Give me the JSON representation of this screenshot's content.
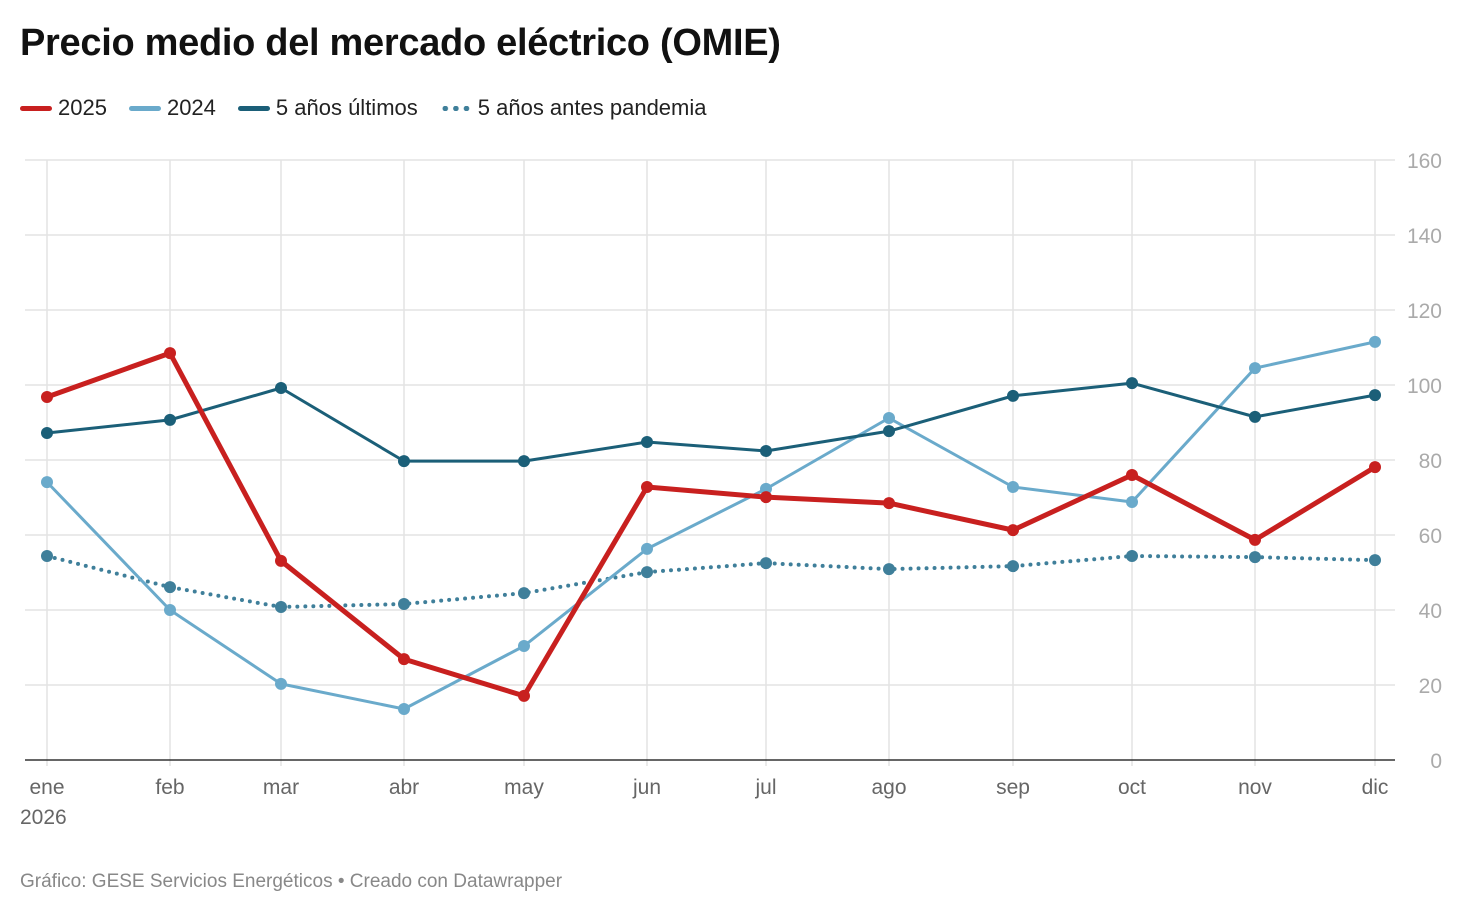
{
  "chart_data": {
    "type": "line",
    "title": "Precio medio del mercado eléctrico (OMIE)",
    "categories": [
      "ene",
      "feb",
      "mar",
      "abr",
      "may",
      "jun",
      "jul",
      "ago",
      "sep",
      "oct",
      "nov",
      "dic"
    ],
    "x_year_label": "2026",
    "ylim": [
      0,
      160
    ],
    "yticks": [
      0,
      20,
      40,
      60,
      80,
      100,
      120,
      140,
      160
    ],
    "grid": true,
    "y_axis_side": "right",
    "legend_placement": "top-left",
    "series": [
      {
        "name": "2025",
        "color": "#c8201f",
        "style": "solid-thick",
        "values": [
          96.8,
          108.5,
          53.1,
          26.9,
          17.1,
          72.8,
          70.1,
          68.5,
          61.3,
          76.0,
          58.7,
          78.1
        ]
      },
      {
        "name": "2024",
        "color": "#6aaacb",
        "style": "solid",
        "values": [
          74.1,
          40.0,
          20.3,
          13.6,
          30.4,
          56.3,
          72.3,
          91.2,
          72.8,
          68.8,
          104.5,
          111.5
        ]
      },
      {
        "name": "5 años últimos",
        "color": "#1b5f78",
        "style": "solid",
        "values": [
          87.2,
          90.7,
          99.2,
          79.7,
          79.7,
          84.8,
          82.4,
          87.7,
          97.1,
          100.5,
          91.5,
          97.3
        ]
      },
      {
        "name": "5 años antes pandemia",
        "color": "#3f7f9a",
        "style": "dotted",
        "values": [
          54.4,
          46.1,
          40.8,
          41.6,
          44.5,
          50.1,
          52.5,
          50.9,
          51.7,
          54.4,
          54.1,
          53.3
        ]
      }
    ]
  },
  "footer": "Gráfico: GESE Servicios Energéticos • Creado con Datawrapper"
}
